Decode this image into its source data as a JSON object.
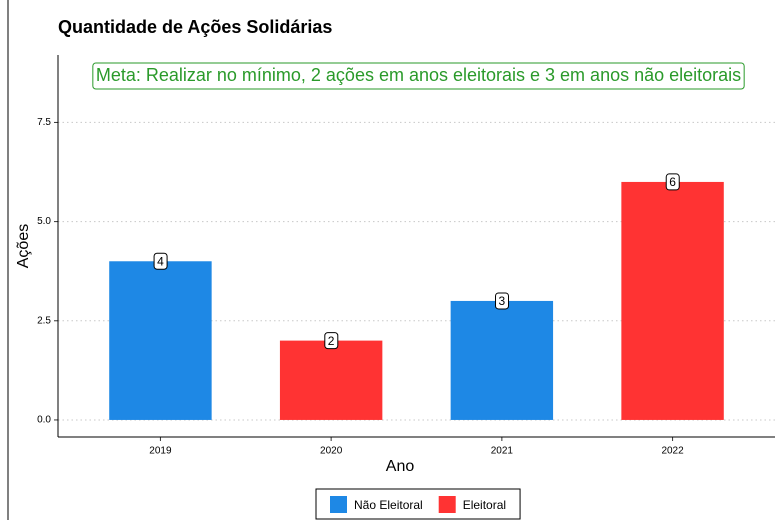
{
  "chart_data": {
    "type": "bar",
    "title": "Quantidade de Ações Solidárias",
    "annotation": "Meta: Realizar no mínimo, 2 ações em anos eleitorais e 3 em anos não eleitorais",
    "annotation_color": "#2a9a2a",
    "x_label": "Ano",
    "y_label": "Ações",
    "categories": [
      "2019",
      "2020",
      "2021",
      "2022"
    ],
    "series": [
      {
        "name": "Não Eleitoral",
        "color": "#1e88e5",
        "values": [
          4,
          null,
          3,
          null
        ]
      },
      {
        "name": "Eleitoral",
        "color": "#ff3333",
        "values": [
          null,
          2,
          null,
          6
        ]
      }
    ],
    "ylim": [
      -0.43,
      9.2
    ],
    "yticks": [
      {
        "value": 0,
        "label": "0.0"
      },
      2.5,
      {
        "value": 5,
        "label": "5.0"
      },
      7.5
    ],
    "grid": true,
    "legend": "bottom"
  }
}
